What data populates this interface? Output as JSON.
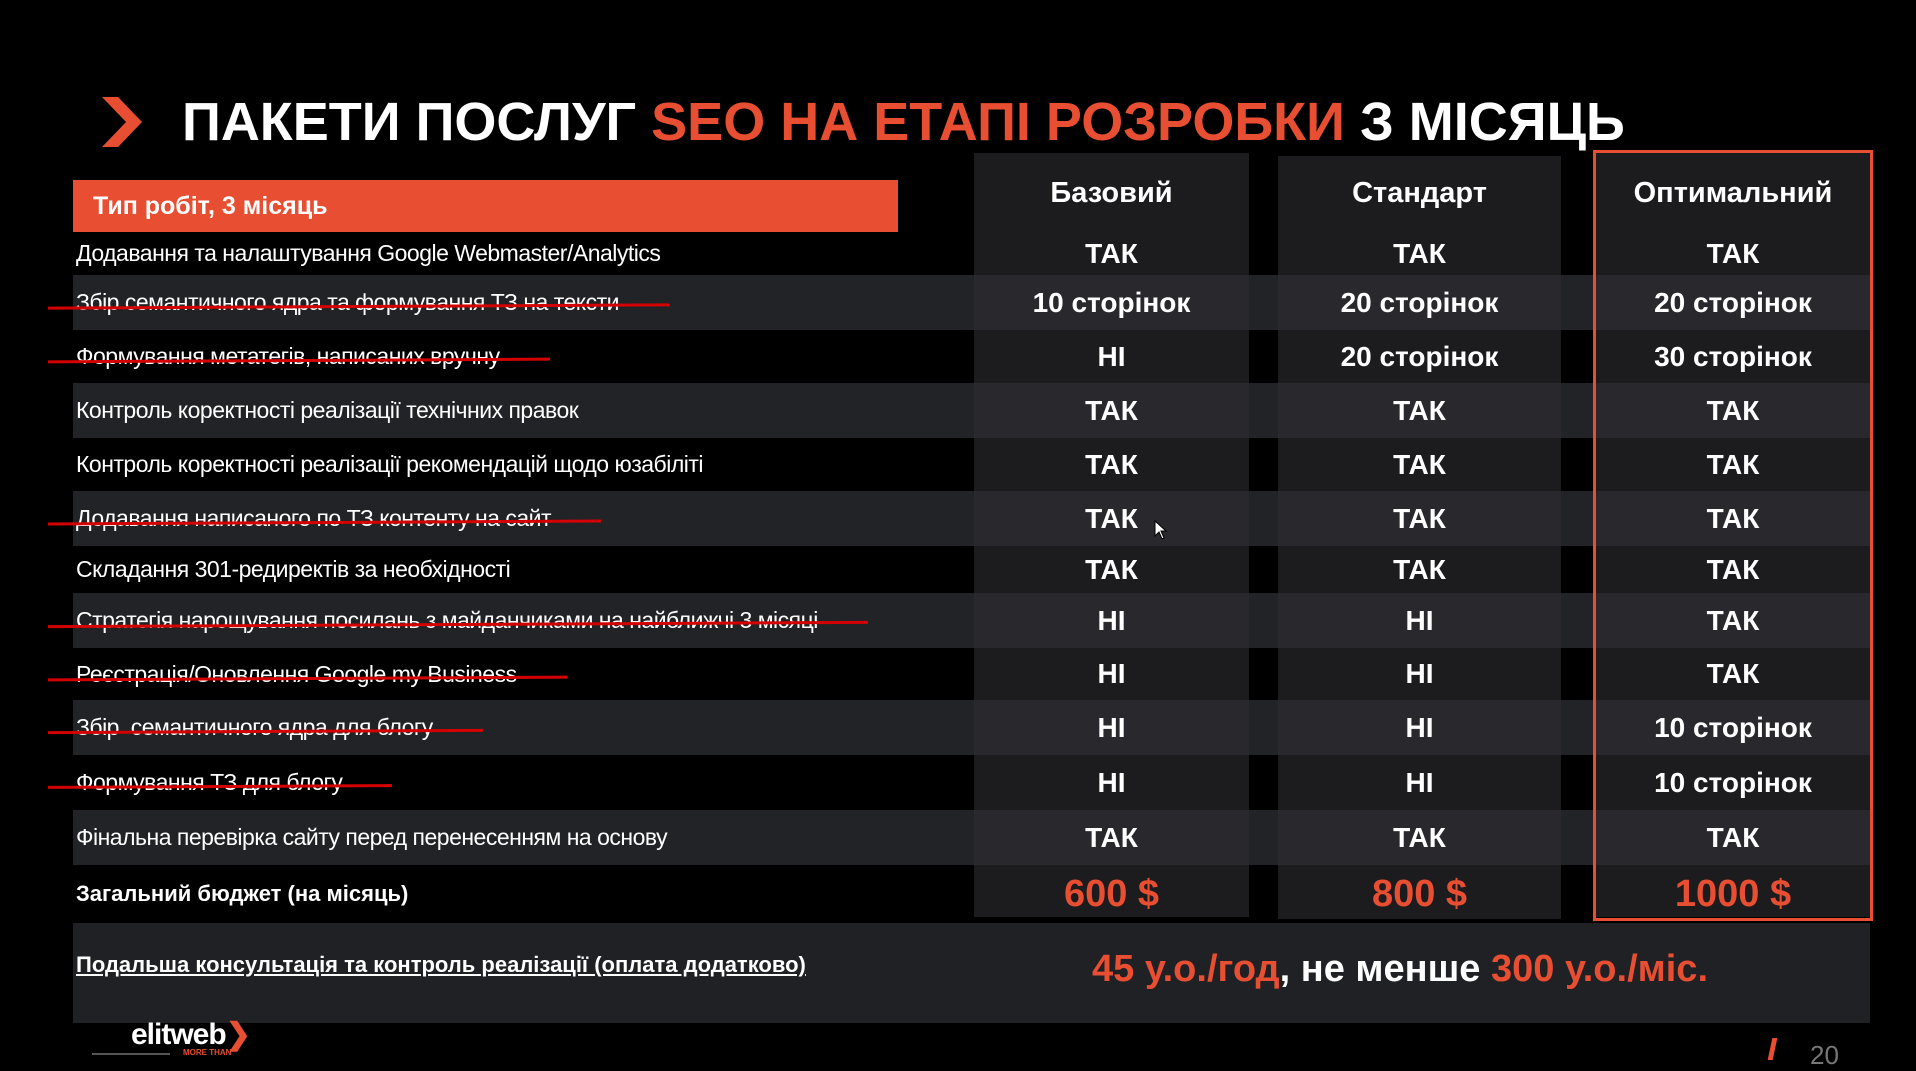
{
  "title": {
    "part1": "ПАКЕТИ ПОСЛУГ ",
    "highlight": "SEO НА ЕТАПІ РОЗРОБКИ",
    "part2": " З МІСЯЦЬ",
    "icon": "chevron-right-icon"
  },
  "colors": {
    "accent": "#e84e31",
    "strike": "#d40000",
    "background": "#000000"
  },
  "table": {
    "header_label": "Тип робіт, 3 місяць",
    "plans": [
      "Базовий",
      "Стандарт",
      "Оптимальний"
    ],
    "highlighted_plan": "Оптимальний",
    "rows": [
      {
        "label": "Додавання та налаштування Google Webmaster/Analytics",
        "struck": false,
        "values": [
          "ТАК",
          "ТАК",
          "ТАК"
        ]
      },
      {
        "label": "Збір семантичного ядра та формування ТЗ на тексти",
        "struck": true,
        "values": [
          "10 сторінок",
          "20 сторінок",
          "20 сторінок"
        ]
      },
      {
        "label": "Формування метатегів, написаних вручну",
        "struck": true,
        "values": [
          "НІ",
          "20 сторінок",
          "30 сторінок"
        ]
      },
      {
        "label": "Контроль коректності реалізації технічних правок",
        "struck": false,
        "values": [
          "ТАК",
          "ТАК",
          "ТАК"
        ]
      },
      {
        "label": "Контроль коректності реалізації рекомендацій щодо юзабіліті",
        "struck": false,
        "values": [
          "ТАК",
          "ТАК",
          "ТАК"
        ]
      },
      {
        "label": "Додавання написаного по ТЗ контенту на сайт",
        "struck": true,
        "values": [
          "ТАК",
          "ТАК",
          "ТАК"
        ]
      },
      {
        "label": "Складання 301-редиректів за необхідності",
        "struck": false,
        "values": [
          "ТАК",
          "ТАК",
          "ТАК"
        ]
      },
      {
        "label": "Стратегія нарощування посилань з майданчиками на найближчі 3 місяці",
        "struck": true,
        "values": [
          "НІ",
          "НІ",
          "ТАК"
        ]
      },
      {
        "label": "Реєстрація/Оновлення Google my Business",
        "struck": true,
        "values": [
          "НІ",
          "НІ",
          "ТАК"
        ]
      },
      {
        "label": "Збір  семантичного ядра для блогу",
        "struck": true,
        "values": [
          "НІ",
          "НІ",
          "10 сторінок"
        ]
      },
      {
        "label": "Формування ТЗ для блогу",
        "struck": true,
        "values": [
          "НІ",
          "НІ",
          "10 сторінок"
        ]
      },
      {
        "label": "Фінальна перевірка сайту перед перенесенням на основу",
        "struck": false,
        "values": [
          "ТАК",
          "ТАК",
          "ТАК"
        ]
      }
    ],
    "budget": {
      "label": "Загальний бюджет (на місяць)",
      "values": [
        "600 $",
        "800 $",
        "1000 $"
      ]
    }
  },
  "consultation": {
    "label": "Подальша консультація та контроль реалізації (оплата додатково)",
    "rate_hour": "45 у.о./год",
    "separator": ", не менше ",
    "rate_month": "300 у.о./міс."
  },
  "footer": {
    "logo": "elitweb",
    "tagline": "MORE THAN",
    "page_number": "20"
  }
}
